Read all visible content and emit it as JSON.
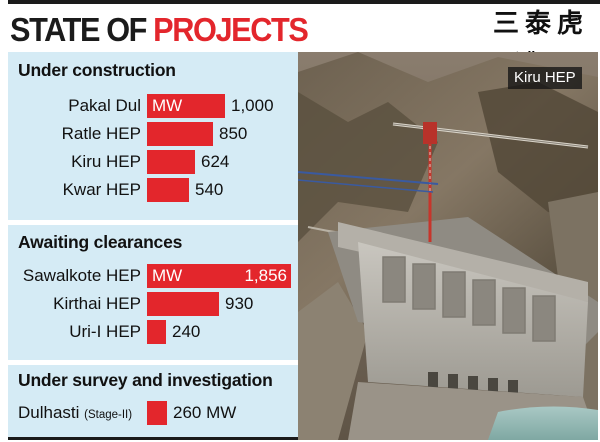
{
  "title": {
    "part1": "STATE OF",
    "part2": "PROJECTS"
  },
  "watermark": "三泰虎",
  "site": "santaihu.com",
  "photo_caption": "Kiru HEP",
  "colors": {
    "accent": "#e3262c",
    "panel_bg": "#d5ebf5",
    "dark": "#1b1b1b"
  },
  "chart_data": {
    "type": "bar",
    "orientation": "horizontal",
    "unit": "MW",
    "sections": [
      {
        "heading": "Under construction",
        "categories": [
          "Pakal Dul",
          "Ratle HEP",
          "Kiru HEP",
          "Kwar HEP"
        ],
        "values": [
          1000,
          850,
          624,
          540
        ],
        "value_labels": [
          "1,000",
          "850",
          "624",
          "540"
        ]
      },
      {
        "heading": "Awaiting clearances",
        "categories": [
          "Sawalkote HEP",
          "Kirthai HEP",
          "Uri-I HEP"
        ],
        "values": [
          1856,
          930,
          240
        ],
        "value_labels": [
          "1,856",
          "930",
          "240"
        ]
      },
      {
        "heading": "Under survey and investigation",
        "categories": [
          "Dulhasti"
        ],
        "category_notes": [
          "(Stage-II)"
        ],
        "values": [
          260
        ],
        "value_labels": [
          "260 MW"
        ]
      }
    ]
  }
}
